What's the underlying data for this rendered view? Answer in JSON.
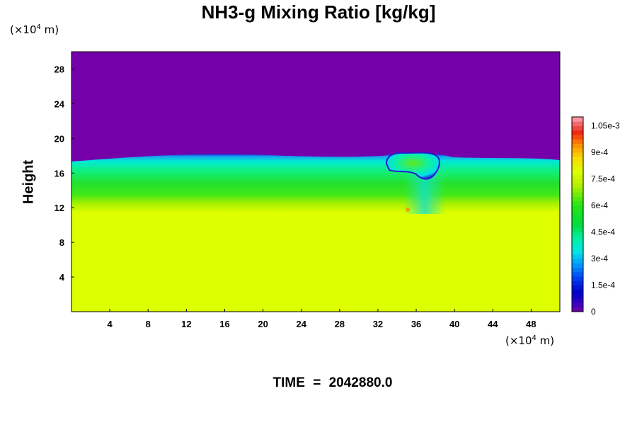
{
  "chart_data": {
    "type": "heatmap",
    "title": "NH3-g Mixing Ratio [kg/kg]",
    "ylabel": "Height",
    "xlabel": "",
    "x_unit_label": "(×10",
    "x_unit_exp": "4",
    "x_unit_suffix": " m)",
    "y_unit_label": "(×10",
    "y_unit_exp": "4",
    "y_unit_suffix": " m)",
    "xlim": [
      0,
      51
    ],
    "ylim": [
      0,
      30
    ],
    "x_ticks": [
      4,
      8,
      12,
      16,
      20,
      24,
      28,
      32,
      36,
      40,
      44,
      48
    ],
    "x_tick_labels": [
      "4",
      "8",
      "12",
      "16",
      "20",
      "24",
      "28",
      "32",
      "36",
      "40",
      "44",
      "48"
    ],
    "y_ticks": [
      4,
      8,
      12,
      16,
      20,
      24,
      28
    ],
    "y_tick_labels": [
      "4",
      "8",
      "12",
      "16",
      "20",
      "24",
      "28"
    ],
    "colorbar": {
      "vmin": 0,
      "vmax": 0.0011,
      "ticks": [
        0,
        0.00015,
        0.0003,
        0.00045,
        0.0006,
        0.00075,
        0.0009,
        0.00105
      ],
      "tick_labels": [
        "0",
        "1.5e-4",
        "3e-4",
        "4.5e-4",
        "6e-4",
        "7.5e-4",
        "9e-4",
        "1.05e-3"
      ]
    },
    "field_description_values": {
      "lower_layer_value": 0.0008,
      "upper_layer_value": 0,
      "layer_top_height": 17.5,
      "feature_center_x": 35.5,
      "feature_top_height": 18.2
    },
    "colors": {
      "background_top": "#7300a8",
      "background_bottom": "#ddff00"
    }
  },
  "footer": {
    "time_label": "TIME",
    "equals": "=",
    "time_value": "2042880.0"
  }
}
